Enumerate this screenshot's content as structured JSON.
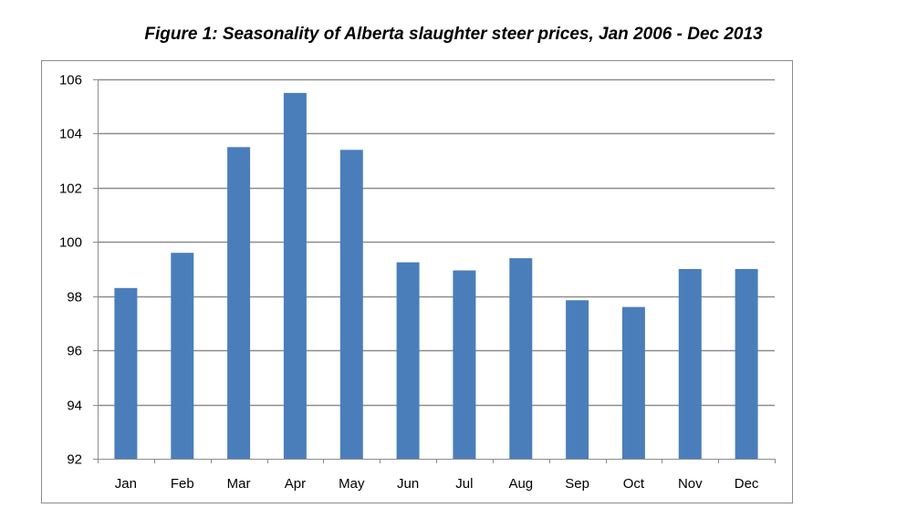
{
  "chart_data": {
    "type": "bar",
    "title": "Figure 1: Seasonality of Alberta slaughter steer prices, Jan 2006 - Dec 2013",
    "xlabel": "",
    "ylabel": "",
    "categories": [
      "Jan",
      "Feb",
      "Mar",
      "Apr",
      "May",
      "Jun",
      "Jul",
      "Aug",
      "Sep",
      "Oct",
      "Nov",
      "Dec"
    ],
    "values": [
      98.3,
      99.6,
      103.5,
      105.5,
      103.4,
      99.25,
      98.95,
      99.4,
      97.85,
      97.6,
      99.0,
      99.0
    ],
    "ylim": [
      92,
      106
    ],
    "yticks": [
      92,
      94,
      96,
      98,
      100,
      102,
      104,
      106
    ],
    "grid": "horizontal",
    "legend": "none",
    "bar_color": "#4a7ebb"
  }
}
